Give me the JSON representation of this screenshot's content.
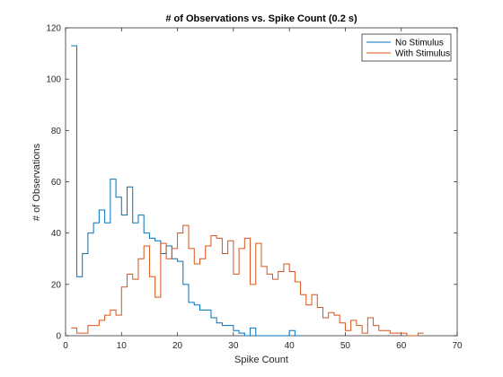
{
  "chart_data": {
    "type": "line",
    "style": "stairs",
    "title": "# of Observations vs. Spike Count (0.2 s)",
    "xlabel": "Spike Count",
    "ylabel": "# of Observations",
    "xlim": [
      0,
      70
    ],
    "ylim": [
      0,
      120
    ],
    "xticks": [
      0,
      10,
      20,
      30,
      40,
      50,
      60,
      70
    ],
    "yticks": [
      0,
      20,
      40,
      60,
      80,
      100,
      120
    ],
    "xtick_labels": [
      "0",
      "10",
      "20",
      "30",
      "40",
      "50",
      "60",
      "70"
    ],
    "ytick_labels": [
      "0",
      "20",
      "40",
      "60",
      "80",
      "100",
      "120"
    ],
    "grid": false,
    "legend_position": "top-right",
    "series": [
      {
        "name": "No Stimulus",
        "color": "#0072BD",
        "x": [
          1,
          2,
          3,
          4,
          5,
          6,
          7,
          8,
          9,
          10,
          11,
          12,
          13,
          14,
          15,
          16,
          17,
          18,
          19,
          20,
          21,
          22,
          23,
          24,
          25,
          26,
          27,
          28,
          29,
          30,
          31,
          32,
          33,
          34,
          35,
          36,
          37,
          38,
          39,
          40,
          41
        ],
        "values": [
          113,
          23,
          32,
          40,
          44,
          49,
          44,
          61,
          54,
          47,
          58,
          44,
          47,
          40,
          38,
          37,
          32,
          35,
          30,
          29,
          20,
          13,
          12,
          10,
          10,
          7,
          5,
          4,
          4,
          2,
          1,
          0,
          3,
          0,
          0,
          0,
          0,
          0,
          0,
          2,
          0
        ]
      },
      {
        "name": "With Stimulus",
        "color": "#D95319",
        "x": [
          1,
          2,
          3,
          4,
          5,
          6,
          7,
          8,
          9,
          10,
          11,
          12,
          13,
          14,
          15,
          16,
          17,
          18,
          19,
          20,
          21,
          22,
          23,
          24,
          25,
          26,
          27,
          28,
          29,
          30,
          31,
          32,
          33,
          34,
          35,
          36,
          37,
          38,
          39,
          40,
          41,
          42,
          43,
          44,
          45,
          46,
          47,
          48,
          49,
          50,
          51,
          52,
          53,
          54,
          55,
          56,
          57,
          58,
          59,
          60,
          61,
          62,
          63
        ],
        "values": [
          3,
          1,
          1,
          4,
          4,
          6,
          8,
          10,
          8,
          19,
          24,
          22,
          30,
          35,
          23,
          15,
          36,
          30,
          34,
          40,
          43,
          34,
          28,
          30,
          35,
          39,
          38,
          32,
          37,
          24,
          34,
          38,
          20,
          36,
          27,
          24,
          22,
          25,
          28,
          25,
          21,
          16,
          12,
          16,
          11,
          7,
          9,
          8,
          5,
          2,
          6,
          4,
          1,
          7,
          4,
          2,
          2,
          1,
          1,
          1,
          0,
          0,
          1
        ]
      }
    ]
  }
}
